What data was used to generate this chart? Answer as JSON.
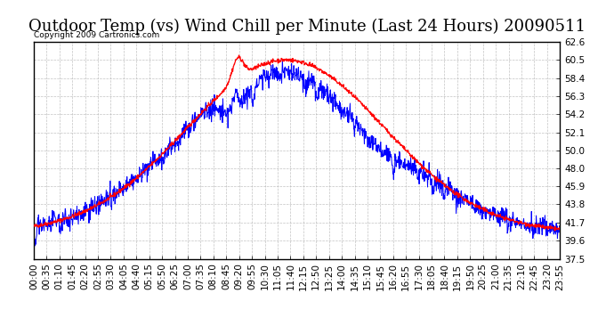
{
  "title": "Outdoor Temp (vs) Wind Chill per Minute (Last 24 Hours) 20090511",
  "copyright_text": "Copyright 2009 Cartronics.com",
  "y_ticks": [
    37.5,
    39.6,
    41.7,
    43.8,
    45.9,
    48.0,
    50.0,
    52.1,
    54.2,
    56.3,
    58.4,
    60.5,
    62.6
  ],
  "y_min": 37.5,
  "y_max": 62.6,
  "x_labels": [
    "00:00",
    "00:35",
    "01:10",
    "01:45",
    "02:20",
    "02:55",
    "03:30",
    "04:05",
    "04:40",
    "05:15",
    "05:50",
    "06:25",
    "07:00",
    "07:35",
    "08:10",
    "08:45",
    "09:20",
    "09:55",
    "10:30",
    "11:05",
    "11:40",
    "12:15",
    "12:50",
    "13:25",
    "14:00",
    "14:35",
    "15:10",
    "15:45",
    "16:20",
    "16:55",
    "17:30",
    "18:05",
    "18:40",
    "19:15",
    "19:50",
    "20:25",
    "21:00",
    "21:35",
    "22:10",
    "22:45",
    "23:20",
    "23:55"
  ],
  "bg_color": "#ffffff",
  "plot_bg_color": "#ffffff",
  "grid_color": "#aaaaaa",
  "red_line_color": "#ff0000",
  "blue_line_color": "#0000ff",
  "title_fontsize": 13,
  "tick_fontsize": 7.5
}
